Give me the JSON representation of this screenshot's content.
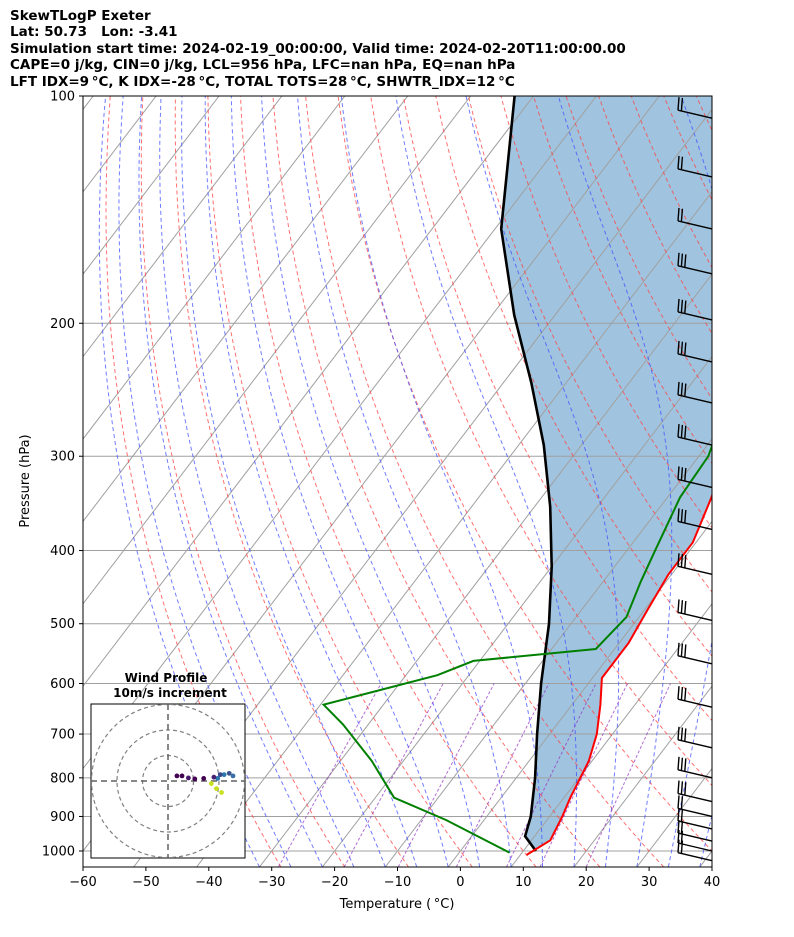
{
  "header": {
    "line1": "SkewTLogP Exeter",
    "line2": "Lat: 50.73   Lon: -3.41",
    "line3": "Simulation start time: 2024-02-19_00:00:00, Valid time: 2024-02-20T11:00:00.00",
    "line4": "CAPE=0 j/kg, CIN=0 j/kg, LCL=956 hPa, LFC=nan hPa, EQ=nan hPa",
    "line5": "LFT IDX=9 °C, K IDX=-28 °C, TOTAL TOTS=28 °C, SHWTR_IDX=12 °C"
  },
  "colors": {
    "temperature": "#ff0000",
    "dewpoint": "#008000",
    "parcel": "#000000",
    "cape_fill": "#a0c4df",
    "isotherm": "#a0a0a0",
    "dry_adiabat": "#ff4040",
    "moist_adiabat": "#4050ff",
    "mixing_ratio": "#9030c0"
  },
  "chart_data": [
    {
      "type": "line",
      "title": "",
      "xlabel": "Temperature ( °C)",
      "ylabel": "Pressure (hPa)",
      "xlim": [
        -60,
        40
      ],
      "ylim": [
        1050,
        100
      ],
      "y_scale": "log",
      "skew": true,
      "x_ticks": [
        "−60",
        "−50",
        "−40",
        "−30",
        "−20",
        "−10",
        "0",
        "10",
        "20",
        "30",
        "40"
      ],
      "y_ticks": [
        "100",
        "200",
        "300",
        "400",
        "500",
        "600",
        "700",
        "800",
        "900",
        "1000"
      ],
      "grid": true,
      "series": [
        {
          "name": "Temperature",
          "x": [
            11,
            13,
            12,
            11,
            9.5,
            7.5,
            4.5,
            1.5,
            1.5,
            0.5,
            -0.5,
            -0.5,
            -3.0,
            -6.5,
            -7.5,
            -12.5,
            -16.5,
            -17.0,
            -19.5,
            -27.0,
            -33.0,
            -37.5,
            -40.5
          ],
          "y": [
            1012,
            968,
            900,
            850,
            760,
            700,
            640,
            590,
            530,
            480,
            430,
            390,
            340,
            290,
            270,
            220,
            200,
            185,
            155,
            135,
            118,
            107,
            100
          ]
        },
        {
          "name": "Dew point",
          "x": [
            8,
            3,
            -6,
            -17,
            -25,
            -34,
            -39.5,
            -25,
            -21,
            -3,
            -2,
            -4,
            -5.5,
            -8.0,
            -8.5,
            -11.5,
            -16.5,
            -18.0,
            -21.0,
            -23.5,
            -33.0,
            -36.5,
            -47.0
          ],
          "y": [
            1005,
            970,
            910,
            850,
            760,
            680,
            640,
            585,
            560,
            540,
            490,
            440,
            400,
            340,
            300,
            260,
            210,
            185,
            165,
            145,
            130,
            118,
            100
          ]
        },
        {
          "name": "Parcel",
          "x": [
            12.0,
            8.5,
            7.0,
            3.0,
            -2.0,
            -7.5,
            -13.5,
            -20.0,
            -27.5,
            -36.0,
            -45.5,
            -56.5,
            -69.0,
            -83.0
          ],
          "y": [
            1000,
            956,
            900,
            800,
            700,
            600,
            500,
            420,
            350,
            290,
            240,
            195,
            150,
            100
          ]
        }
      ]
    },
    {
      "type": "scatter",
      "title": "Wind Profile",
      "subtitle": "10m/s increment",
      "rings_ms": [
        10,
        20,
        30
      ],
      "points_ms": [
        {
          "u": 21.0,
          "v": -4.5
        },
        {
          "u": 19.0,
          "v": -3.0
        },
        {
          "u": 17.0,
          "v": -1.0
        },
        {
          "u": 19.5,
          "v": 1.0
        },
        {
          "u": 22.0,
          "v": 2.5
        },
        {
          "u": 25.5,
          "v": 2.0
        },
        {
          "u": 24.0,
          "v": 3.0
        },
        {
          "u": 20.5,
          "v": 2.5
        },
        {
          "u": 18.0,
          "v": 1.5
        },
        {
          "u": 14.0,
          "v": 1.0
        },
        {
          "u": 10.5,
          "v": 0.8
        },
        {
          "u": 8.0,
          "v": 1.2
        },
        {
          "u": 5.5,
          "v": 2.0
        },
        {
          "u": 3.5,
          "v": 2.0
        }
      ]
    }
  ]
}
